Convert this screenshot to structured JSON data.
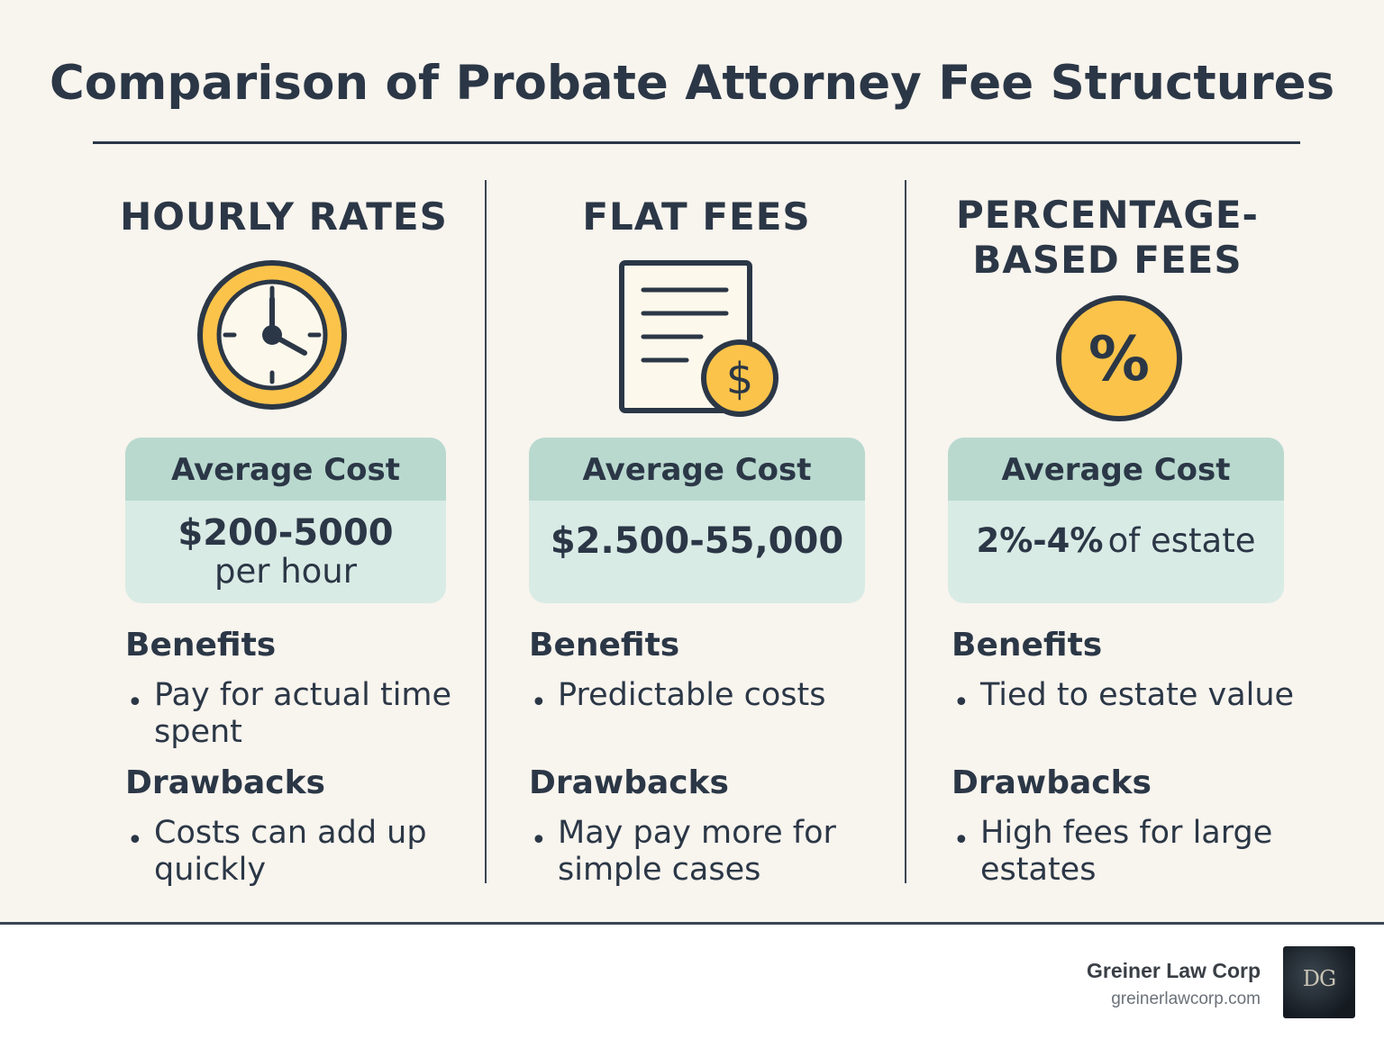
{
  "title": "Comparison of Probate Attorney Fee Structures",
  "columns": [
    {
      "heading_lines": [
        "HOURLY RATES"
      ],
      "icon": "clock-icon",
      "cost_label": "Average Cost",
      "cost_main": "$200-5000",
      "cost_sub": "per hour",
      "benefits_label": "Benefits",
      "benefit_lines": [
        "Pay for actual time",
        "spent"
      ],
      "drawbacks_label": "Drawbacks",
      "drawback_lines": [
        "Costs can add up",
        "quickly"
      ]
    },
    {
      "heading_lines": [
        "FLAT FEES"
      ],
      "icon": "document-dollar-icon",
      "cost_label": "Average Cost",
      "cost_main": "$2.500-55,000",
      "cost_sub": "",
      "benefits_label": "Benefits",
      "benefit_lines": [
        "Predictable costs"
      ],
      "drawbacks_label": "Drawbacks",
      "drawback_lines": [
        "May pay more for",
        "simple cases"
      ]
    },
    {
      "heading_lines": [
        "PERCENTAGE-",
        "BASED FEES"
      ],
      "icon": "percent-icon",
      "cost_label": "Average Cost",
      "cost_main": "2%-4%",
      "cost_sub": "of estate",
      "benefits_label": "Benefits",
      "benefit_lines": [
        "Tied to estate value"
      ],
      "drawbacks_label": "Drawbacks",
      "drawback_lines": [
        "High fees for large",
        "estates"
      ]
    }
  ],
  "footer": {
    "brand_name": "Greiner Law Corp",
    "brand_url": "greinerlawcorp.com",
    "logo_text": "DG"
  },
  "colors": {
    "background": "#f8f4ee",
    "accent_yellow": "#fbc34a",
    "text_dark": "#2b3746",
    "box_header": "#b9d9cf",
    "box_body": "#d9ebe5"
  }
}
